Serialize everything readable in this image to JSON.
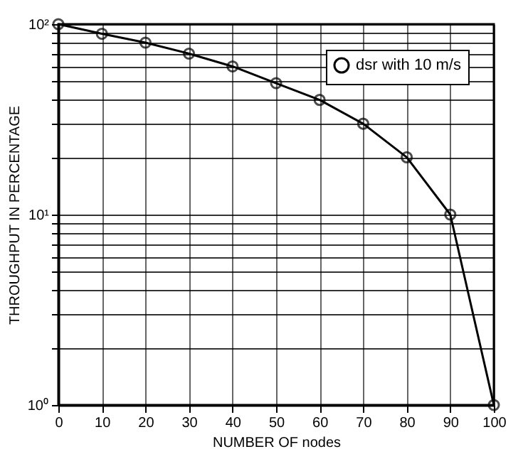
{
  "chart_data": {
    "type": "line",
    "xlabel": "NUMBER OF nodes",
    "ylabel": "THROUGHPUT IN PERCENTAGE",
    "x": [
      0,
      10,
      20,
      30,
      40,
      50,
      60,
      70,
      80,
      90,
      100
    ],
    "series": [
      {
        "name": "dsr with 10 m/s",
        "color": "#000000",
        "values": [
          100,
          89,
          80,
          70,
          60,
          49,
          40,
          30,
          20,
          10,
          1
        ]
      }
    ],
    "xlim": [
      0,
      100
    ],
    "xticks": [
      0,
      10,
      20,
      30,
      40,
      50,
      60,
      70,
      80,
      90,
      100
    ],
    "ylim": [
      1,
      100
    ],
    "yticks": [
      {
        "value": 1,
        "label": "10⁰"
      },
      {
        "value": 2,
        "label": null
      },
      {
        "value": 3,
        "label": null
      },
      {
        "value": 4,
        "label": null
      },
      {
        "value": 5,
        "label": null
      },
      {
        "value": 6,
        "label": null
      },
      {
        "value": 7,
        "label": null
      },
      {
        "value": 8,
        "label": null
      },
      {
        "value": 9,
        "label": null
      },
      {
        "value": 10,
        "label": "10¹"
      },
      {
        "value": 20,
        "label": null
      },
      {
        "value": 30,
        "label": null
      },
      {
        "value": 40,
        "label": null
      },
      {
        "value": 50,
        "label": null
      },
      {
        "value": 60,
        "label": null
      },
      {
        "value": 70,
        "label": null
      },
      {
        "value": 80,
        "label": null
      },
      {
        "value": 90,
        "label": null
      },
      {
        "value": 100,
        "label": "10²"
      }
    ],
    "log": true,
    "grid": true,
    "legend": "top right",
    "marker": "circle",
    "line_style": "solid"
  }
}
